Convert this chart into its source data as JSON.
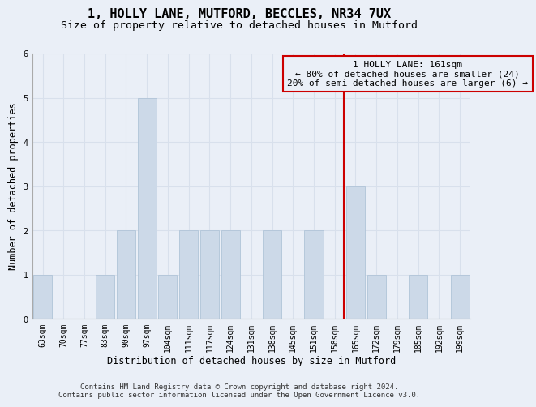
{
  "title": "1, HOLLY LANE, MUTFORD, BECCLES, NR34 7UX",
  "subtitle": "Size of property relative to detached houses in Mutford",
  "xlabel": "Distribution of detached houses by size in Mutford",
  "ylabel": "Number of detached properties",
  "categories": [
    "63sqm",
    "70sqm",
    "77sqm",
    "83sqm",
    "90sqm",
    "97sqm",
    "104sqm",
    "111sqm",
    "117sqm",
    "124sqm",
    "131sqm",
    "138sqm",
    "145sqm",
    "151sqm",
    "158sqm",
    "165sqm",
    "172sqm",
    "179sqm",
    "185sqm",
    "192sqm",
    "199sqm"
  ],
  "values": [
    1,
    0,
    0,
    1,
    2,
    5,
    1,
    2,
    2,
    2,
    0,
    2,
    0,
    2,
    0,
    3,
    1,
    0,
    1,
    0,
    1
  ],
  "bar_color": "#ccd9e8",
  "bar_edgecolor": "#b0c4d8",
  "marker_line_color": "#cc0000",
  "annotation_box_edgecolor": "#cc0000",
  "annotation_text_line1": "1 HOLLY LANE: 161sqm",
  "annotation_text_line2": "← 80% of detached houses are smaller (24)",
  "annotation_text_line3": "20% of semi-detached houses are larger (6) →",
  "ylim": [
    0,
    6
  ],
  "yticks": [
    0,
    1,
    2,
    3,
    4,
    5,
    6
  ],
  "grid_color": "#d8e0ec",
  "background_color": "#eaeff7",
  "footer_line1": "Contains HM Land Registry data © Crown copyright and database right 2024.",
  "footer_line2": "Contains public sector information licensed under the Open Government Licence v3.0.",
  "title_fontsize": 11,
  "subtitle_fontsize": 9.5,
  "axis_label_fontsize": 8.5,
  "tick_fontsize": 7,
  "annotation_fontsize": 8,
  "footer_fontsize": 6.5
}
